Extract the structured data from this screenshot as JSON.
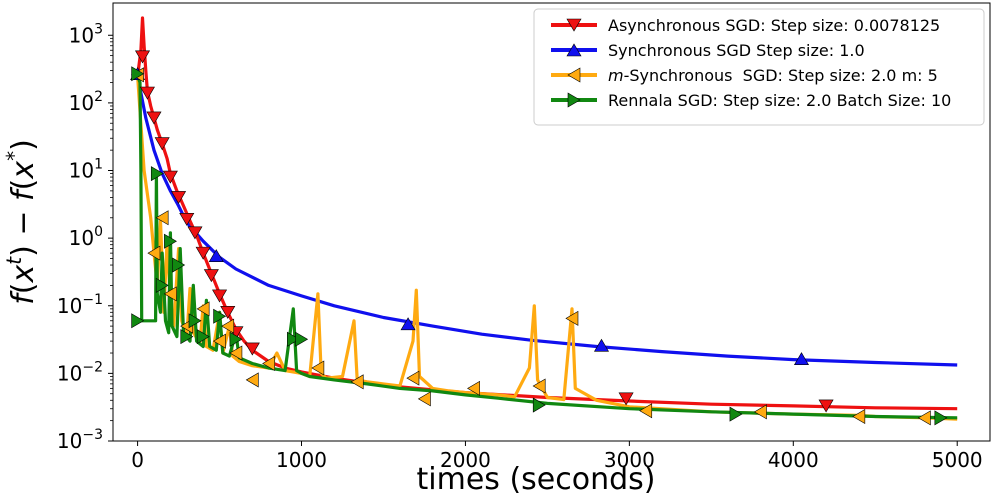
{
  "chart_data": {
    "type": "line",
    "xlabel": "times (seconds)",
    "ylabel": "f(x^t) − f(x^*)",
    "ylabel_parts": {
      "f1": "f",
      "open1": "(",
      "x1": "x",
      "sup1": "t",
      "close1": ")",
      "minus": " − ",
      "f2": "f",
      "open2": "(",
      "x2": "x",
      "sup2": "*",
      "close2": ")"
    },
    "yscale": "log",
    "xlim": [
      -150,
      5200
    ],
    "ylim": [
      0.001,
      3000
    ],
    "grid": false,
    "legend_position": "top-right",
    "x_ticks": [
      {
        "value": 0,
        "label": "0"
      },
      {
        "value": 1000,
        "label": "1000"
      },
      {
        "value": 2000,
        "label": "2000"
      },
      {
        "value": 3000,
        "label": "3000"
      },
      {
        "value": 4000,
        "label": "4000"
      },
      {
        "value": 5000,
        "label": "5000"
      }
    ],
    "y_ticks": [
      {
        "value": 0.001,
        "base": "10",
        "exp": "−3"
      },
      {
        "value": 0.01,
        "base": "10",
        "exp": "−2"
      },
      {
        "value": 0.1,
        "base": "10",
        "exp": "−1"
      },
      {
        "value": 1,
        "base": "10",
        "exp": "0"
      },
      {
        "value": 10,
        "base": "10",
        "exp": "1"
      },
      {
        "value": 100,
        "base": "10",
        "exp": "2"
      },
      {
        "value": 1000,
        "base": "10",
        "exp": "3"
      }
    ],
    "series": [
      {
        "name": "Asynchronous SGD: Step size: 0.0078125",
        "legend_parts": [
          "Asynchronous SGD: Step size: 0.0078125"
        ],
        "color": "#ee1111",
        "marker": "triangle-down",
        "points": [
          [
            0,
            250
          ],
          [
            20,
            600
          ],
          [
            30,
            1800
          ],
          [
            40,
            700
          ],
          [
            50,
            300
          ],
          [
            60,
            150
          ],
          [
            80,
            90
          ],
          [
            100,
            60
          ],
          [
            120,
            40
          ],
          [
            150,
            25
          ],
          [
            180,
            15
          ],
          [
            200,
            9
          ],
          [
            240,
            5
          ],
          [
            280,
            3
          ],
          [
            320,
            1.8
          ],
          [
            360,
            1.1
          ],
          [
            400,
            0.6
          ],
          [
            450,
            0.3
          ],
          [
            500,
            0.15
          ],
          [
            550,
            0.08
          ],
          [
            600,
            0.045
          ],
          [
            650,
            0.03
          ],
          [
            700,
            0.022
          ],
          [
            800,
            0.015
          ],
          [
            900,
            0.012
          ],
          [
            1000,
            0.0105
          ],
          [
            1200,
            0.0085
          ],
          [
            1400,
            0.0072
          ],
          [
            1600,
            0.0063
          ],
          [
            1800,
            0.0057
          ],
          [
            2000,
            0.0052
          ],
          [
            2500,
            0.0044
          ],
          [
            3000,
            0.0039
          ],
          [
            3500,
            0.0035
          ],
          [
            4000,
            0.0033
          ],
          [
            4500,
            0.0031
          ],
          [
            5000,
            0.003
          ]
        ],
        "markers": [
          [
            30,
            480
          ],
          [
            60,
            140
          ],
          [
            100,
            60
          ],
          [
            150,
            25
          ],
          [
            200,
            8
          ],
          [
            250,
            4
          ],
          [
            300,
            1.9
          ],
          [
            350,
            1.2
          ],
          [
            400,
            0.6
          ],
          [
            450,
            0.28
          ],
          [
            500,
            0.14
          ],
          [
            550,
            0.08
          ],
          [
            600,
            0.04
          ],
          [
            700,
            0.023
          ],
          [
            2980,
            0.0042
          ],
          [
            4200,
            0.0033
          ]
        ]
      },
      {
        "name": "Synchronous SGD Step size: 1.0",
        "legend_parts": [
          "Synchronous SGD Step size: 1.0"
        ],
        "color": "#1010ee",
        "marker": "triangle-up",
        "points": [
          [
            0,
            250
          ],
          [
            50,
            60
          ],
          [
            100,
            20
          ],
          [
            150,
            9
          ],
          [
            200,
            5
          ],
          [
            250,
            3
          ],
          [
            300,
            1.7
          ],
          [
            400,
            0.9
          ],
          [
            500,
            0.52
          ],
          [
            600,
            0.35
          ],
          [
            800,
            0.2
          ],
          [
            1000,
            0.14
          ],
          [
            1200,
            0.1
          ],
          [
            1500,
            0.067
          ],
          [
            1800,
            0.05
          ],
          [
            2100,
            0.038
          ],
          [
            2400,
            0.031
          ],
          [
            2800,
            0.025
          ],
          [
            3200,
            0.021
          ],
          [
            3600,
            0.018
          ],
          [
            4000,
            0.016
          ],
          [
            4500,
            0.0145
          ],
          [
            5000,
            0.0133
          ]
        ],
        "markers": [
          [
            0,
            270
          ],
          [
            480,
            0.55
          ],
          [
            1650,
            0.054
          ],
          [
            2830,
            0.026
          ],
          [
            4050,
            0.0165
          ]
        ]
      },
      {
        "name": "m-Synchronous SGD: Step size: 2.0 m: 5",
        "legend_parts": [
          "m",
          "-Synchronous  SGD: Step size: 2.0 m: 5"
        ],
        "color": "#ffaa11",
        "marker": "triangle-left",
        "points": [
          [
            0,
            250
          ],
          [
            40,
            10
          ],
          [
            80,
            2
          ],
          [
            100,
            0.6
          ],
          [
            120,
            0.2
          ],
          [
            140,
            1.8
          ],
          [
            150,
            0.4
          ],
          [
            160,
            0.08
          ],
          [
            180,
            0.9
          ],
          [
            200,
            0.12
          ],
          [
            220,
            0.05
          ],
          [
            250,
            0.7
          ],
          [
            270,
            0.06
          ],
          [
            300,
            0.035
          ],
          [
            320,
            0.18
          ],
          [
            340,
            0.04
          ],
          [
            380,
            0.028
          ],
          [
            400,
            0.1
          ],
          [
            420,
            0.025
          ],
          [
            460,
            0.022
          ],
          [
            500,
            0.08
          ],
          [
            520,
            0.02
          ],
          [
            560,
            0.05
          ],
          [
            580,
            0.018
          ],
          [
            620,
            0.015
          ],
          [
            700,
            0.013
          ],
          [
            800,
            0.012
          ],
          [
            850,
            0.02
          ],
          [
            900,
            0.011
          ],
          [
            1000,
            0.01
          ],
          [
            1050,
            0.009
          ],
          [
            1100,
            0.15
          ],
          [
            1120,
            0.01
          ],
          [
            1150,
            0.0085
          ],
          [
            1250,
            0.009
          ],
          [
            1320,
            0.06
          ],
          [
            1340,
            0.008
          ],
          [
            1400,
            0.0075
          ],
          [
            1500,
            0.007
          ],
          [
            1600,
            0.0065
          ],
          [
            1680,
            0.03
          ],
          [
            1700,
            0.17
          ],
          [
            1720,
            0.009
          ],
          [
            1800,
            0.006
          ],
          [
            1900,
            0.0055
          ],
          [
            2000,
            0.0052
          ],
          [
            2200,
            0.0048
          ],
          [
            2300,
            0.0045
          ],
          [
            2390,
            0.012
          ],
          [
            2420,
            0.1
          ],
          [
            2440,
            0.008
          ],
          [
            2500,
            0.0044
          ],
          [
            2600,
            0.0041
          ],
          [
            2650,
            0.09
          ],
          [
            2670,
            0.006
          ],
          [
            2800,
            0.004
          ],
          [
            3000,
            0.0032
          ],
          [
            3500,
            0.0027
          ],
          [
            4000,
            0.0025
          ],
          [
            4400,
            0.0024
          ],
          [
            4500,
            0.0023
          ],
          [
            4800,
            0.0022
          ],
          [
            5000,
            0.0021
          ]
        ],
        "markers": [
          [
            0,
            260
          ],
          [
            100,
            0.6
          ],
          [
            150,
            2
          ],
          [
            200,
            0.15
          ],
          [
            300,
            0.05
          ],
          [
            400,
            0.09
          ],
          [
            500,
            0.03
          ],
          [
            550,
            0.05
          ],
          [
            600,
            0.02
          ],
          [
            700,
            0.008
          ],
          [
            800,
            0.014
          ],
          [
            1100,
            0.012
          ],
          [
            1340,
            0.0075
          ],
          [
            1680,
            0.0085
          ],
          [
            1750,
            0.0042
          ],
          [
            2050,
            0.006
          ],
          [
            2450,
            0.0065
          ],
          [
            2650,
            0.065
          ],
          [
            3100,
            0.0028
          ],
          [
            3800,
            0.0027
          ],
          [
            4400,
            0.0023
          ],
          [
            4800,
            0.0022
          ]
        ]
      },
      {
        "name": "Rennala SGD: Step size: 2.0 Batch Size: 10",
        "legend_parts": [
          "Rennala SGD: Step size: 2.0 Batch Size: 10"
        ],
        "color": "#118811",
        "marker": "triangle-right",
        "points": [
          [
            0,
            250
          ],
          [
            15,
            200
          ],
          [
            20,
            10
          ],
          [
            25,
            0.06
          ],
          [
            60,
            0.06
          ],
          [
            80,
            0.06
          ],
          [
            100,
            0.06
          ],
          [
            110,
            0.06
          ],
          [
            115,
            9
          ],
          [
            120,
            0.15
          ],
          [
            140,
            0.08
          ],
          [
            150,
            0.6
          ],
          [
            170,
            0.06
          ],
          [
            190,
            0.04
          ],
          [
            200,
            1.2
          ],
          [
            210,
            0.05
          ],
          [
            240,
            0.035
          ],
          [
            260,
            0.7
          ],
          [
            280,
            0.04
          ],
          [
            320,
            0.03
          ],
          [
            340,
            0.2
          ],
          [
            360,
            0.03
          ],
          [
            400,
            0.025
          ],
          [
            420,
            0.12
          ],
          [
            440,
            0.025
          ],
          [
            480,
            0.022
          ],
          [
            500,
            0.08
          ],
          [
            520,
            0.02
          ],
          [
            560,
            0.018
          ],
          [
            600,
            0.04
          ],
          [
            620,
            0.017
          ],
          [
            700,
            0.014
          ],
          [
            800,
            0.012
          ],
          [
            900,
            0.011
          ],
          [
            950,
            0.09
          ],
          [
            970,
            0.011
          ],
          [
            1000,
            0.01
          ],
          [
            1050,
            0.009
          ],
          [
            1200,
            0.008
          ],
          [
            1400,
            0.007
          ],
          [
            1600,
            0.006
          ],
          [
            1800,
            0.0055
          ],
          [
            2000,
            0.0048
          ],
          [
            2200,
            0.0043
          ],
          [
            2500,
            0.0036
          ],
          [
            3000,
            0.003
          ],
          [
            3500,
            0.0027
          ],
          [
            4000,
            0.0025
          ],
          [
            4500,
            0.0023
          ],
          [
            5000,
            0.0022
          ]
        ],
        "markers": [
          [
            0,
            270
          ],
          [
            0,
            0.06
          ],
          [
            120,
            9
          ],
          [
            150,
            0.2
          ],
          [
            200,
            0.9
          ],
          [
            250,
            0.4
          ],
          [
            300,
            0.035
          ],
          [
            350,
            0.06
          ],
          [
            400,
            0.035
          ],
          [
            500,
            0.07
          ],
          [
            600,
            0.032
          ],
          [
            950,
            0.032
          ],
          [
            1000,
            0.032
          ],
          [
            2450,
            0.0034
          ],
          [
            3650,
            0.0025
          ],
          [
            4900,
            0.0022
          ]
        ]
      }
    ]
  }
}
